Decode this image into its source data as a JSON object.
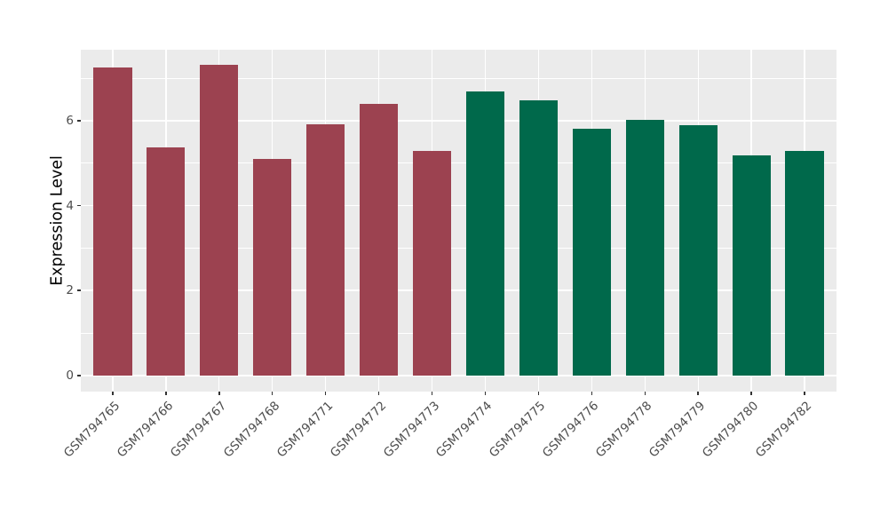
{
  "chart_data": {
    "type": "bar",
    "title": "",
    "xlabel": "",
    "ylabel": "Expression Level",
    "categories": [
      "GSM794765",
      "GSM794766",
      "GSM794767",
      "GSM794768",
      "GSM794771",
      "GSM794772",
      "GSM794773",
      "GSM794774",
      "GSM794775",
      "GSM794776",
      "GSM794778",
      "GSM794779",
      "GSM794780",
      "GSM794782"
    ],
    "values": [
      7.25,
      5.38,
      7.31,
      5.09,
      5.92,
      6.39,
      5.29,
      6.68,
      6.48,
      5.81,
      6.01,
      5.89,
      5.18,
      5.28
    ],
    "bar_colors": [
      "#9C4250",
      "#9C4250",
      "#9C4250",
      "#9C4250",
      "#9C4250",
      "#9C4250",
      "#9C4250",
      "#00694B",
      "#00694B",
      "#00694B",
      "#00694B",
      "#00694B",
      "#00694B",
      "#00694B"
    ],
    "group_colors": {
      "left_group": "#9C4250",
      "right_group": "#00694B"
    },
    "yticks": {
      "labels": [
        "0",
        "2",
        "4",
        "6"
      ],
      "values": [
        0,
        2,
        4,
        6
      ]
    },
    "minor_yticks": [
      1,
      3,
      5,
      7
    ],
    "ylim": [
      -0.38,
      7.67
    ],
    "grid": true,
    "legend_position": "none",
    "colors": {
      "plot_background": "#FFFFFF",
      "panel_background": "#EBEBEB",
      "grid": "#FFFFFF",
      "tick_marks": "#333333",
      "axis_text": "#4D4D4D",
      "axis_title": "#000000"
    }
  }
}
